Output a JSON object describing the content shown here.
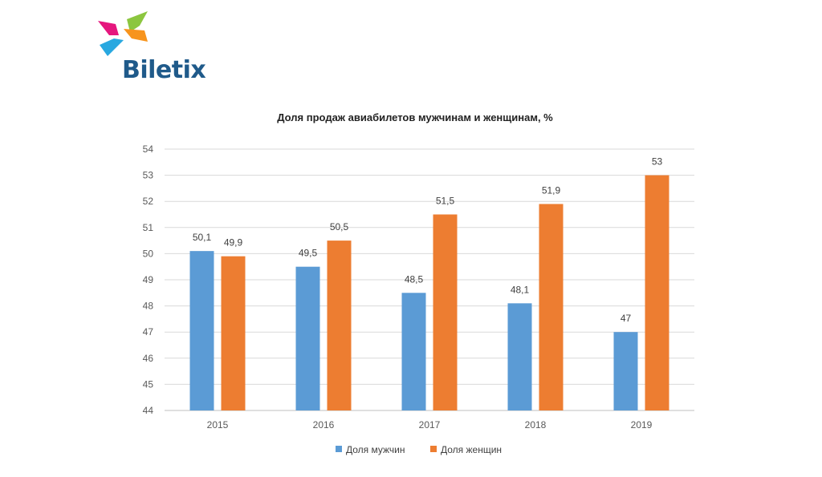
{
  "brand": {
    "name": "Biletix",
    "colors": {
      "text": "#1f5a8a",
      "magenta": "#e5177e",
      "green": "#8cc63f",
      "orange": "#f7941d",
      "blue": "#29a8e0"
    }
  },
  "chart_data": {
    "type": "bar",
    "title": "Доля продаж авиабилетов мужчинам и женщинам, %",
    "categories": [
      "2015",
      "2016",
      "2017",
      "2018",
      "2019"
    ],
    "series": [
      {
        "name": "Доля мужчин",
        "color": "#5b9bd5",
        "values": [
          50.1,
          49.5,
          48.5,
          48.1,
          47
        ],
        "labels": [
          "50,1",
          "49,5",
          "48,5",
          "48,1",
          "47"
        ]
      },
      {
        "name": "Доля женщин",
        "color": "#ed7d31",
        "values": [
          49.9,
          50.5,
          51.5,
          51.9,
          53
        ],
        "labels": [
          "49,9",
          "50,5",
          "51,5",
          "51,9",
          "53"
        ]
      }
    ],
    "ylim": [
      44,
      54
    ],
    "yticks": [
      "44",
      "45",
      "46",
      "47",
      "48",
      "49",
      "50",
      "51",
      "52",
      "53",
      "54"
    ],
    "grid": true,
    "legend": "bottom",
    "xlabel": "",
    "ylabel": ""
  }
}
